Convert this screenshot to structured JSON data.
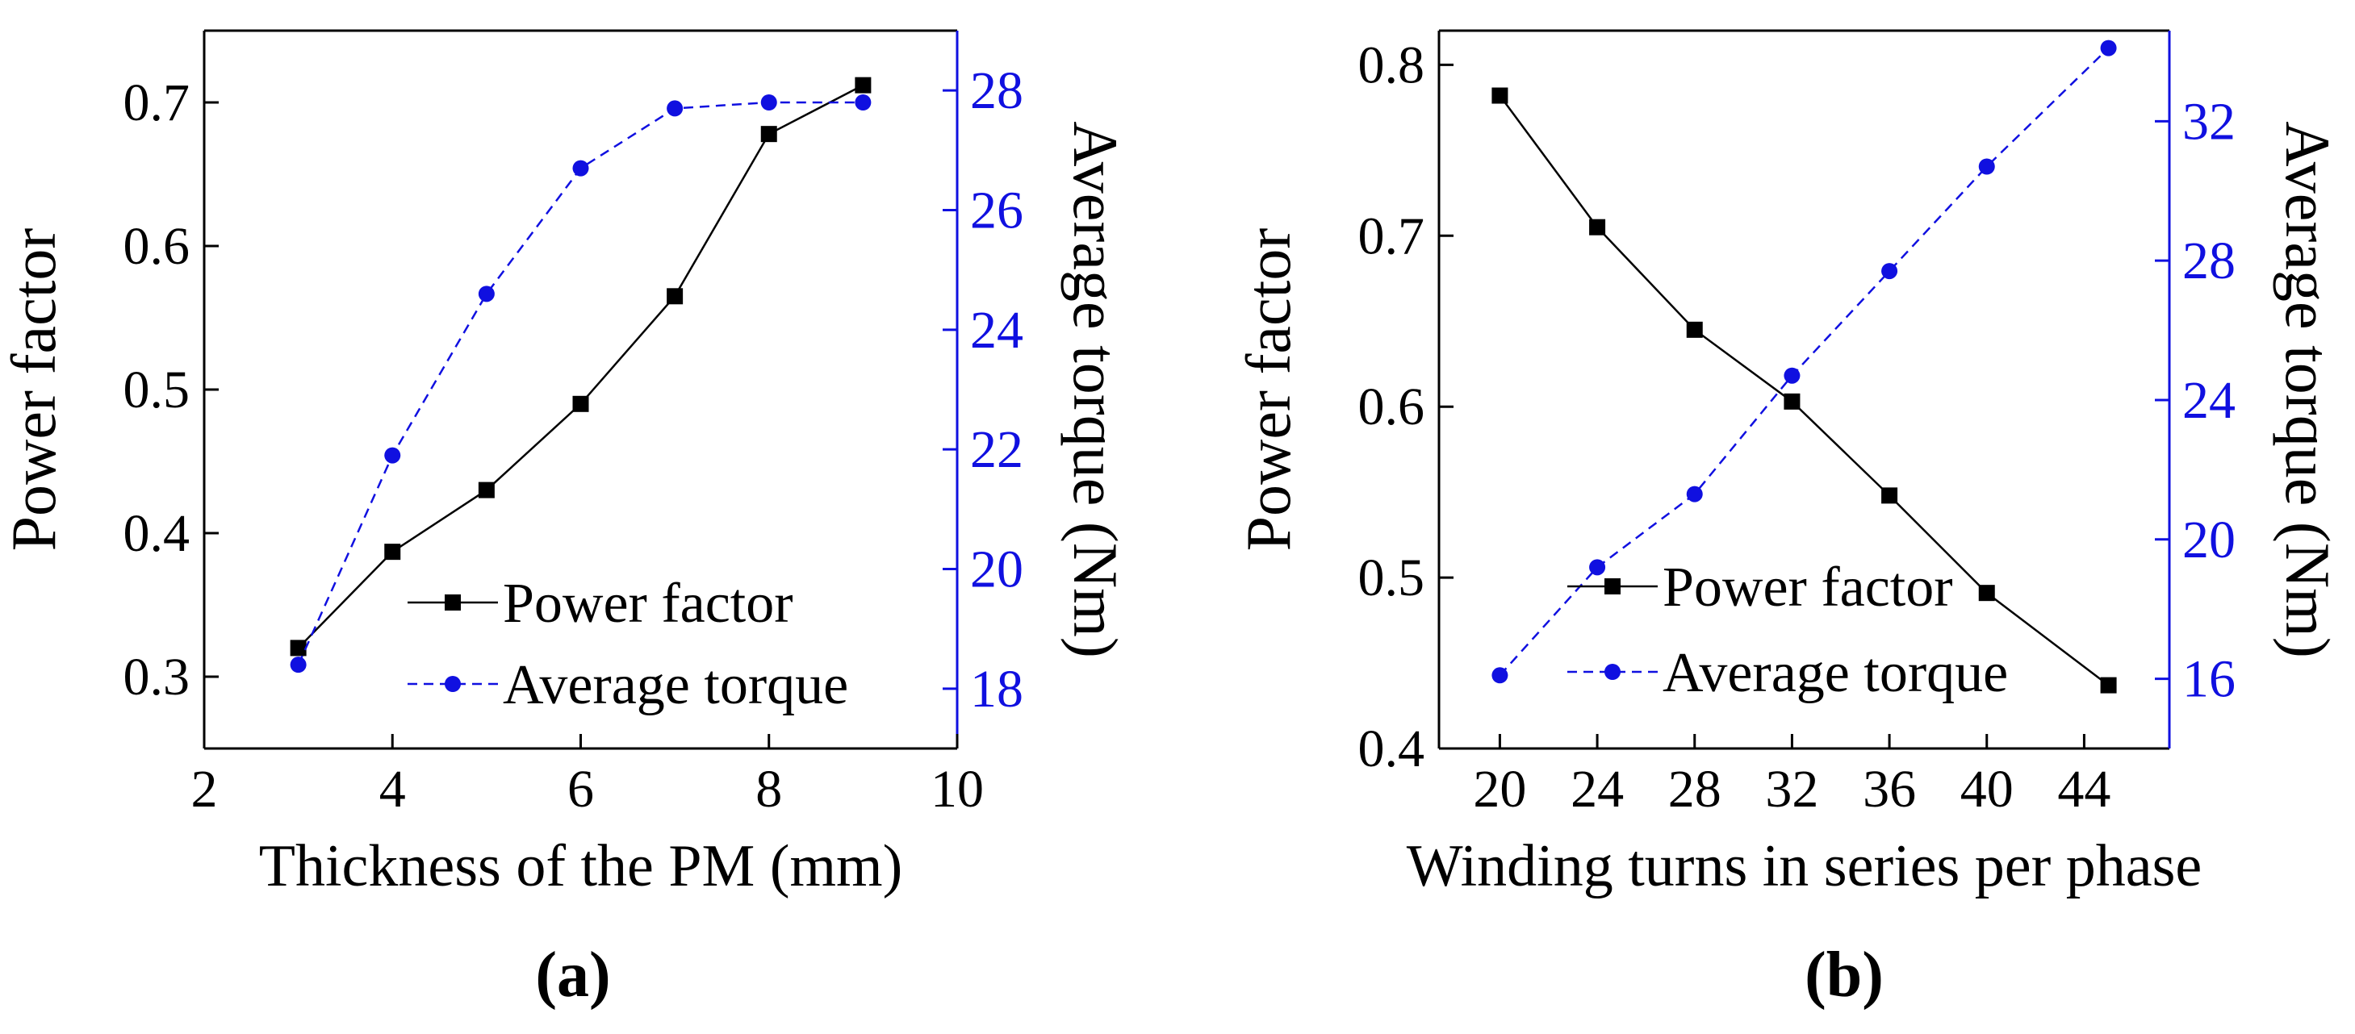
{
  "figure_captions": [
    "(a)",
    "(b)"
  ],
  "colors": {
    "black": "#000000",
    "blue": "#1010e0"
  },
  "chart_data": [
    {
      "type": "line",
      "caption": "(a)",
      "xlabel": "Thickness of the PM (mm)",
      "ylabel": "Power factor",
      "y2label": "Average torque (Nm)",
      "xlim": [
        2,
        10
      ],
      "ylim": [
        0.25,
        0.75
      ],
      "y2lim": [
        17,
        29
      ],
      "xticks": [
        2,
        4,
        6,
        8,
        10
      ],
      "xtick_labels": [
        "2",
        "4",
        "6",
        "8",
        "10"
      ],
      "yticks": [
        0.3,
        0.4,
        0.5,
        0.6,
        0.7
      ],
      "ytick_labels": [
        "0.3",
        "0.4",
        "0.5",
        "0.6",
        "0.7"
      ],
      "y2ticks": [
        18,
        20,
        22,
        24,
        26,
        28
      ],
      "y2tick_labels": [
        "18",
        "20",
        "22",
        "24",
        "26",
        "28"
      ],
      "legend_position": "bottom-right",
      "series": [
        {
          "name": "Power factor",
          "axis": "left",
          "marker": "square",
          "linestyle": "solid",
          "color": "#000000",
          "x": [
            3,
            4,
            5,
            6,
            7,
            8,
            9
          ],
          "values": [
            0.32,
            0.387,
            0.43,
            0.49,
            0.565,
            0.678,
            0.712
          ]
        },
        {
          "name": "Average torque",
          "axis": "right",
          "marker": "circle",
          "linestyle": "dashed",
          "color": "#1010e0",
          "x": [
            3,
            4,
            5,
            6,
            7,
            8,
            9
          ],
          "values": [
            18.4,
            21.9,
            24.6,
            26.7,
            27.7,
            27.8,
            27.8
          ]
        }
      ]
    },
    {
      "type": "line",
      "caption": "(b)",
      "xlabel": "Winding turns in series per phase",
      "ylabel": "Power factor",
      "y2label": "Average torque (Nm)",
      "xlim": [
        17.5,
        47.5
      ],
      "ylim": [
        0.4,
        0.82
      ],
      "y2lim": [
        14,
        34.6
      ],
      "xticks": [
        20,
        24,
        28,
        32,
        36,
        40,
        44
      ],
      "xtick_labels": [
        "20",
        "24",
        "28",
        "32",
        "36",
        "40",
        "44"
      ],
      "yticks": [
        0.4,
        0.5,
        0.6,
        0.7,
        0.8
      ],
      "ytick_labels": [
        "0.4",
        "0.5",
        "0.6",
        "0.7",
        "0.8"
      ],
      "y2ticks": [
        16,
        20,
        24,
        28,
        32
      ],
      "y2tick_labels": [
        "16",
        "20",
        "24",
        "28",
        "32"
      ],
      "legend_position": "bottom-center",
      "series": [
        {
          "name": "Power factor",
          "axis": "left",
          "marker": "square",
          "linestyle": "solid",
          "color": "#000000",
          "x": [
            20,
            24,
            28,
            32,
            36,
            40,
            45
          ],
          "values": [
            0.782,
            0.705,
            0.645,
            0.603,
            0.548,
            0.491,
            0.437
          ]
        },
        {
          "name": "Average torque",
          "axis": "right",
          "marker": "circle",
          "linestyle": "dashed",
          "color": "#1010e0",
          "x": [
            20,
            24,
            28,
            32,
            36,
            40,
            45
          ],
          "values": [
            16.1,
            19.2,
            21.3,
            24.7,
            27.7,
            30.7,
            34.1
          ]
        }
      ]
    }
  ]
}
